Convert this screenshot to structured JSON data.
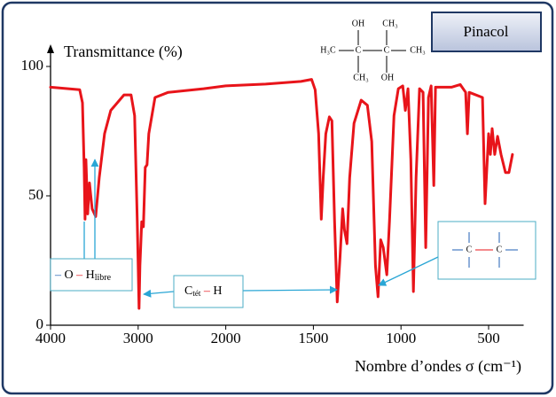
{
  "chart_data": {
    "type": "line",
    "title": "Pinacol",
    "ylabel": "Transmittance (%)",
    "xlabel": "Nombre d’ondes σ (cm⁻¹)",
    "x": [
      4000,
      3667,
      3636,
      3616,
      3606,
      3596,
      3576,
      3556,
      3525,
      3485,
      3444,
      3384,
      3313,
      3162,
      3081,
      3040,
      3010,
      2990,
      2980,
      2960,
      2940,
      2919,
      2899,
      2879,
      2808,
      2657,
      2253,
      2000,
      1773,
      1571,
      1510,
      1490,
      1470,
      1455,
      1444,
      1429,
      1409,
      1394,
      1379,
      1364,
      1348,
      1333,
      1323,
      1308,
      1293,
      1268,
      1227,
      1192,
      1167,
      1146,
      1131,
      1116,
      1101,
      1081,
      1066,
      1040,
      1015,
      990,
      975,
      960,
      944,
      929,
      914,
      894,
      874,
      859,
      843,
      828,
      813,
      803,
      712,
      662,
      631,
      621,
      611,
      535,
      520,
      500,
      490,
      480,
      465,
      449,
      429,
      404,
      384,
      364
    ],
    "values": [
      92,
      91,
      86,
      61,
      41,
      64,
      43,
      55,
      45,
      42,
      57,
      74,
      83,
      89,
      89,
      81,
      40,
      6.5,
      23,
      40,
      38,
      61,
      62,
      74,
      88,
      90,
      91.4,
      92.5,
      93.2,
      94.2,
      95,
      91,
      74,
      41,
      57,
      74,
      80.5,
      79,
      40,
      9,
      26,
      45,
      37,
      31.5,
      57,
      78,
      87,
      85,
      71,
      23,
      11,
      33,
      30,
      19.5,
      40,
      81,
      91.4,
      92.5,
      83,
      91.4,
      64,
      13,
      57,
      91.4,
      90,
      30,
      88,
      92.5,
      54,
      92,
      92,
      93,
      90,
      74,
      90,
      88,
      47,
      74,
      66,
      76,
      66,
      73,
      66,
      59,
      59,
      66
    ],
    "color": "#e8141a",
    "xlim": [
      4000,
      300
    ],
    "xticks": [
      4000,
      3000,
      2000,
      1500,
      1000,
      500
    ],
    "ylim": [
      0,
      100
    ],
    "yticks": [
      0,
      50,
      100
    ],
    "oh_label": {
      "atoms": [
        "O",
        "H"
      ],
      "subscript": "libre"
    },
    "ch_label": {
      "atoms": [
        "C",
        "H"
      ],
      "subscript": "tét"
    },
    "cc_label": {
      "atoms": [
        "C",
        "C"
      ]
    },
    "molecule": [
      "OH",
      "CH₃",
      "H₃C",
      "C",
      "C",
      "CH₃",
      "CH₃",
      "OH"
    ]
  }
}
